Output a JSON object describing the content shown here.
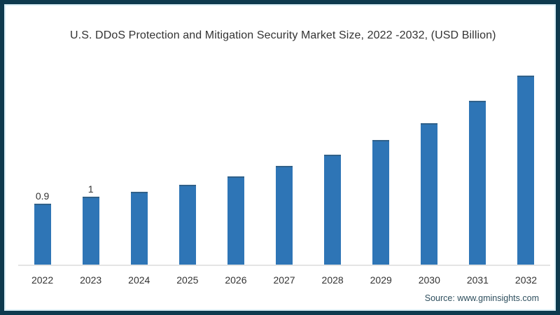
{
  "source": "Source: www.gminsights.com",
  "colors": {
    "bar": "#2e75b6",
    "bar_top_edge": "#30618a",
    "frame": "#0e3a4e",
    "frame_inner_line": "#d9edf4",
    "axis_line": "#e4e4e4",
    "text": "#333333",
    "source_text": "#2f4f5e"
  },
  "chart_data": {
    "type": "bar",
    "title": "U.S. DDoS Protection and Mitigation Security Market Size, 2022 -2032, (USD Billion)",
    "categories": [
      "2022",
      "2023",
      "2024",
      "2025",
      "2026",
      "2027",
      "2028",
      "2029",
      "2030",
      "2031",
      "2032"
    ],
    "values": [
      0.9,
      1.0,
      1.08,
      1.18,
      1.31,
      1.46,
      1.63,
      1.84,
      2.09,
      2.42,
      2.8
    ],
    "data_labels": [
      "0.9",
      "1",
      "",
      "",
      "",
      "",
      "",
      "",
      "",
      "",
      ""
    ],
    "xlabel": "",
    "ylabel": "",
    "ylim": [
      0,
      2.9
    ],
    "grid": false,
    "legend": false,
    "y_axis_visible": false
  }
}
